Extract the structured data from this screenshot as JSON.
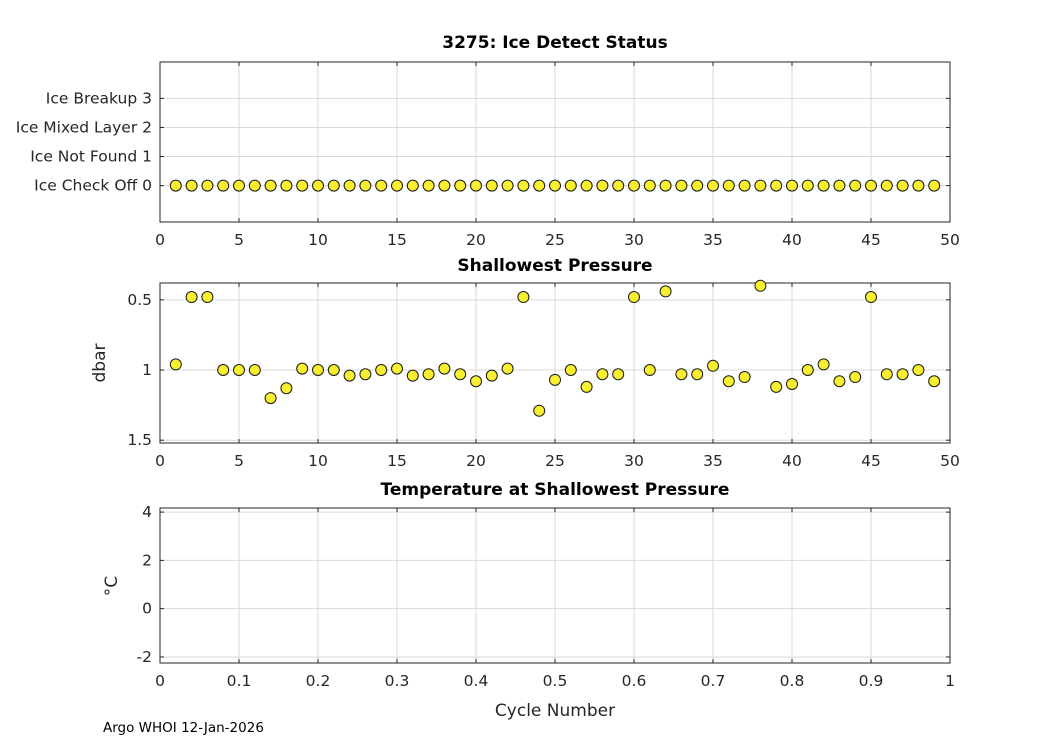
{
  "figure": {
    "footer": "Argo WHOI 12-Jan-2026",
    "background": "#ffffff",
    "axis_color": "#262626",
    "grid_color": "#d9d9d9",
    "marker_fill": "#f7ef2f",
    "marker_edge": "#1a1a1a"
  },
  "chart_data": [
    {
      "type": "scatter",
      "title": "3275: Ice Detect Status",
      "xlabel": "",
      "ylabel": "",
      "grid": true,
      "xlim": [
        0,
        50
      ],
      "xticks": [
        0,
        5,
        10,
        15,
        20,
        25,
        30,
        35,
        40,
        45,
        50
      ],
      "xtick_labels": [
        "0",
        "5",
        "10",
        "15",
        "20",
        "25",
        "30",
        "35",
        "40",
        "45",
        "50"
      ],
      "ylim": [
        -1.25,
        4.25
      ],
      "y_reversed": false,
      "yticks": [
        0,
        1,
        2,
        3
      ],
      "ytick_labels": [
        "Ice Check Off 0",
        "Ice Not Found 1",
        "Ice Mixed Layer 2",
        "Ice Breakup 3"
      ],
      "x": [
        1,
        2,
        3,
        4,
        5,
        6,
        7,
        8,
        9,
        10,
        11,
        12,
        13,
        14,
        15,
        16,
        17,
        18,
        19,
        20,
        21,
        22,
        23,
        24,
        25,
        26,
        27,
        28,
        29,
        30,
        31,
        32,
        33,
        34,
        35,
        36,
        37,
        38,
        39,
        40,
        41,
        42,
        43,
        44,
        45,
        46,
        47,
        48,
        49
      ],
      "y": [
        0,
        0,
        0,
        0,
        0,
        0,
        0,
        0,
        0,
        0,
        0,
        0,
        0,
        0,
        0,
        0,
        0,
        0,
        0,
        0,
        0,
        0,
        0,
        0,
        0,
        0,
        0,
        0,
        0,
        0,
        0,
        0,
        0,
        0,
        0,
        0,
        0,
        0,
        0,
        0,
        0,
        0,
        0,
        0,
        0,
        0,
        0,
        0,
        0
      ]
    },
    {
      "type": "scatter",
      "title": "Shallowest Pressure",
      "xlabel": "",
      "ylabel": "dbar",
      "grid": true,
      "xlim": [
        0,
        50
      ],
      "xticks": [
        0,
        5,
        10,
        15,
        20,
        25,
        30,
        35,
        40,
        45,
        50
      ],
      "xtick_labels": [
        "0",
        "5",
        "10",
        "15",
        "20",
        "25",
        "30",
        "35",
        "40",
        "45",
        "50"
      ],
      "ylim": [
        0.38,
        1.52
      ],
      "y_reversed": true,
      "yticks": [
        0.5,
        1,
        1.5
      ],
      "ytick_labels": [
        "0.5",
        "1",
        "1.5"
      ],
      "x": [
        1,
        2,
        3,
        4,
        5,
        6,
        7,
        8,
        9,
        10,
        11,
        12,
        13,
        14,
        15,
        16,
        17,
        18,
        19,
        20,
        21,
        22,
        23,
        24,
        25,
        26,
        27,
        28,
        29,
        30,
        31,
        32,
        33,
        34,
        35,
        36,
        37,
        38,
        39,
        40,
        41,
        42,
        43,
        44,
        45,
        46,
        47,
        48,
        49
      ],
      "y": [
        0.96,
        0.48,
        0.48,
        1.0,
        1.0,
        1.0,
        1.2,
        1.13,
        0.99,
        1.0,
        1.0,
        1.04,
        1.03,
        1.0,
        0.99,
        1.04,
        1.03,
        0.99,
        1.03,
        1.08,
        1.04,
        0.99,
        0.48,
        1.29,
        1.07,
        1.0,
        1.12,
        1.03,
        1.03,
        0.48,
        1.0,
        0.44,
        1.03,
        1.03,
        0.97,
        1.08,
        1.05,
        0.4,
        1.12,
        1.1,
        1.0,
        0.96,
        1.08,
        1.05,
        0.48,
        1.03,
        1.03,
        1.0,
        1.08
      ]
    },
    {
      "type": "scatter",
      "title": "Temperature at Shallowest Pressure",
      "xlabel": "Cycle Number",
      "ylabel": "°C",
      "grid": true,
      "xlim": [
        0,
        1
      ],
      "xticks": [
        0,
        0.1,
        0.2,
        0.3,
        0.4,
        0.5,
        0.6,
        0.7,
        0.8,
        0.9,
        1
      ],
      "xtick_labels": [
        "0",
        "0.1",
        "0.2",
        "0.3",
        "0.4",
        "0.5",
        "0.6",
        "0.7",
        "0.8",
        "0.9",
        "1"
      ],
      "ylim": [
        -2.25,
        4.17
      ],
      "y_reversed": false,
      "yticks": [
        -2,
        0,
        2,
        4
      ],
      "ytick_labels": [
        "-2",
        "0",
        "2",
        "4"
      ],
      "x": [],
      "y": []
    }
  ]
}
